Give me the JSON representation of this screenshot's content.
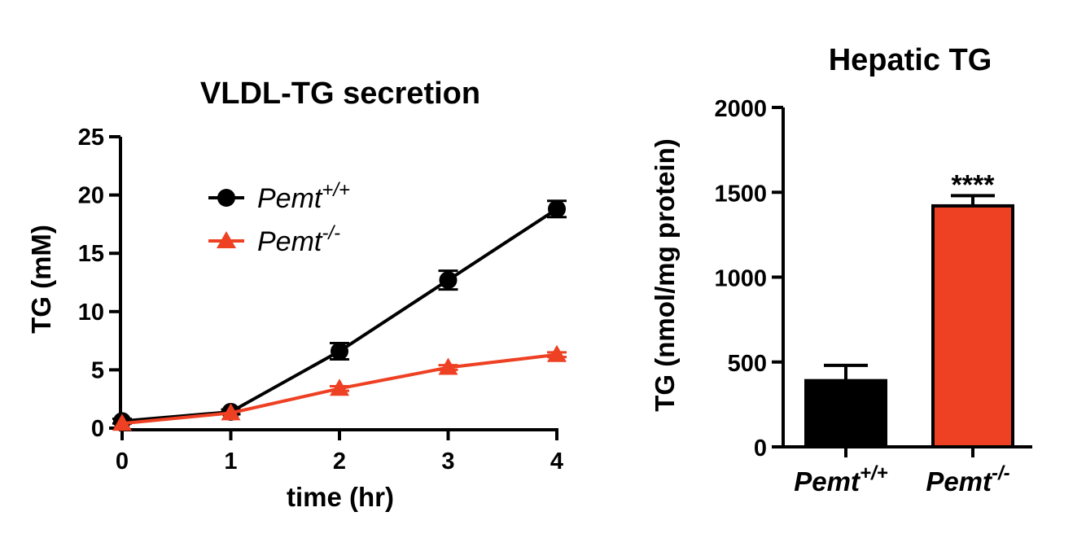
{
  "chart_data": [
    {
      "type": "line",
      "title": "VLDL-TG secretion",
      "xlabel": "time (hr)",
      "ylabel": "TG (mM)",
      "x": [
        0,
        1,
        2,
        3,
        4
      ],
      "xlim": [
        0,
        4
      ],
      "ylim": [
        0,
        25
      ],
      "xticks": [
        "0",
        "1",
        "2",
        "3",
        "4"
      ],
      "yticks": [
        "0",
        "5",
        "10",
        "15",
        "20",
        "25"
      ],
      "legend_position": "upper-left",
      "series": [
        {
          "name_base": "Pemt",
          "name_sup": "+/+",
          "color": "#000000",
          "marker": "circle",
          "values": [
            0.6,
            1.4,
            6.6,
            12.7,
            18.8
          ],
          "errors": [
            0.2,
            0.2,
            0.7,
            0.8,
            0.7
          ]
        },
        {
          "name_base": "Pemt",
          "name_sup": "-/-",
          "color": "#ee4023",
          "marker": "triangle",
          "values": [
            0.4,
            1.3,
            3.4,
            5.2,
            6.3
          ],
          "errors": [
            0.1,
            0.1,
            0.2,
            0.2,
            0.2
          ]
        }
      ]
    },
    {
      "type": "bar",
      "title": "Hepatic TG",
      "ylabel": "TG (nmol/mg protein)",
      "ylim": [
        0,
        2000
      ],
      "yticks": [
        "0",
        "500",
        "1000",
        "1500",
        "2000"
      ],
      "categories": [
        {
          "base": "Pemt",
          "sup": "+/+",
          "value": 390,
          "error": 90,
          "color": "#000000",
          "annotation": ""
        },
        {
          "base": "Pemt",
          "sup": "-/-",
          "value": 1420,
          "error": 60,
          "color": "#ee4023",
          "annotation": "****"
        }
      ]
    }
  ]
}
